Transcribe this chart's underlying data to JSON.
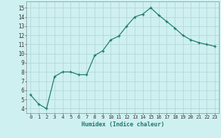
{
  "x": [
    0,
    1,
    2,
    3,
    4,
    5,
    6,
    7,
    8,
    9,
    10,
    11,
    12,
    13,
    14,
    15,
    16,
    17,
    18,
    19,
    20,
    21,
    22,
    23
  ],
  "y": [
    5.5,
    4.5,
    4.0,
    7.5,
    8.0,
    8.0,
    7.7,
    7.7,
    9.8,
    10.3,
    11.5,
    11.9,
    13.0,
    14.0,
    14.3,
    15.0,
    14.2,
    13.5,
    12.8,
    12.0,
    11.5,
    11.2,
    11.0,
    10.8
  ],
  "line_color": "#1a7a6e",
  "marker": "+",
  "bg_color": "#cff0f0",
  "grid_color": "#b0d8d8",
  "xlabel": "Humidex (Indice chaleur)",
  "ylabel_ticks": [
    4,
    5,
    6,
    7,
    8,
    9,
    10,
    11,
    12,
    13,
    14,
    15
  ],
  "ylim": [
    3.5,
    15.7
  ],
  "xlim": [
    -0.5,
    23.5
  ],
  "xtick_labels": [
    "0",
    "1",
    "2",
    "3",
    "4",
    "5",
    "6",
    "7",
    "8",
    "9",
    "10",
    "11",
    "12",
    "13",
    "14",
    "15",
    "16",
    "17",
    "18",
    "19",
    "20",
    "21",
    "22",
    "23"
  ]
}
